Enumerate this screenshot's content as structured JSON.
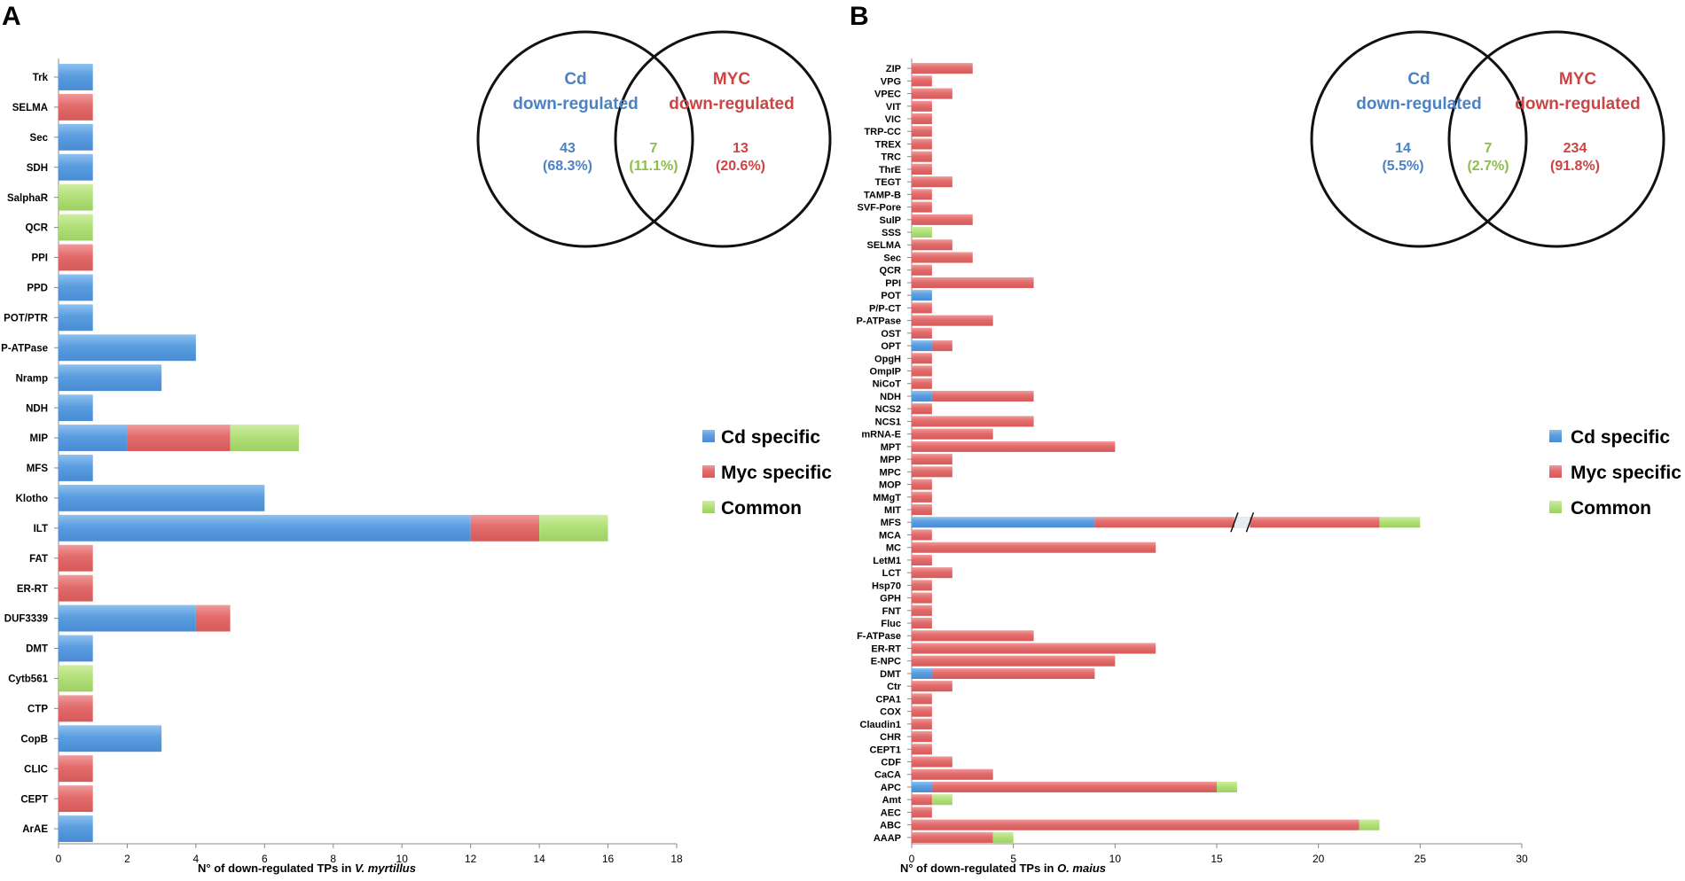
{
  "colors": {
    "cd": "#4f94d9",
    "myc": "#e06464",
    "common": "#a6d866",
    "cd_text": "#4a82c4",
    "myc_text": "#cc4444",
    "common_text": "#8bbf4a"
  },
  "legend": {
    "items": [
      {
        "label": "Cd specific",
        "key": "cd"
      },
      {
        "label": "Myc specific",
        "key": "myc"
      },
      {
        "label": "Common",
        "key": "common"
      }
    ]
  },
  "chart_data": [
    {
      "panel": "A",
      "type": "bar",
      "orientation": "horizontal",
      "stacked": true,
      "xlabel_prefix": "N° of down-regulated TPs in ",
      "xlabel_species": "V. myrtillus",
      "xlim": [
        0,
        18
      ],
      "xticks": [
        0,
        2,
        4,
        6,
        8,
        10,
        12,
        14,
        16,
        18
      ],
      "categories": [
        "Trk",
        "SELMA",
        "Sec",
        "SDH",
        "SalphaR",
        "QCR",
        "PPI",
        "PPD",
        "POT/PTR",
        "P-ATPase",
        "Nramp",
        "NDH",
        "MIP",
        "MFS",
        "Klotho",
        "ILT",
        "FAT",
        "ER-RT",
        "DUF3339",
        "DMT",
        "Cytb561",
        "CTP",
        "CopB",
        "CLIC",
        "CEPT",
        "ArAE"
      ],
      "series": [
        {
          "name": "Cd specific",
          "key": "cd",
          "values": [
            1,
            0,
            1,
            1,
            0,
            0,
            0,
            1,
            1,
            4,
            3,
            1,
            2,
            1,
            6,
            12,
            0,
            0,
            4,
            1,
            0,
            0,
            3,
            0,
            0,
            1
          ]
        },
        {
          "name": "Myc specific",
          "key": "myc",
          "values": [
            0,
            1,
            0,
            0,
            0,
            0,
            1,
            0,
            0,
            0,
            0,
            0,
            3,
            0,
            0,
            2,
            1,
            1,
            1,
            0,
            0,
            1,
            0,
            1,
            1,
            0
          ]
        },
        {
          "name": "Common",
          "key": "common",
          "values": [
            0,
            0,
            0,
            0,
            1,
            1,
            0,
            0,
            0,
            0,
            0,
            0,
            2,
            0,
            0,
            2,
            0,
            0,
            0,
            0,
            1,
            0,
            0,
            0,
            0,
            0
          ]
        }
      ],
      "venn": {
        "left_title": [
          "Cd",
          "down-regulated"
        ],
        "right_title": [
          "MYC",
          "down-regulated"
        ],
        "left_count": "43",
        "left_pct": "(68.3%)",
        "common_count": "7",
        "common_pct": "(11.1%)",
        "right_count": "13",
        "right_pct": "(20.6%)"
      }
    },
    {
      "panel": "B",
      "type": "bar",
      "orientation": "horizontal",
      "stacked": true,
      "xlabel_prefix": "N° of down-regulated TPs in ",
      "xlabel_species": "O. maius",
      "xlim": [
        0,
        30
      ],
      "xticks": [
        0,
        5,
        10,
        15,
        20,
        25,
        30
      ],
      "axis_break": {
        "category": "MFS",
        "positions": [
          16,
          16.5
        ]
      },
      "categories": [
        "ZIP",
        "VPG",
        "VPEC",
        "VIT",
        "VIC",
        "TRP-CC",
        "TREX",
        "TRC",
        "ThrE",
        "TEGT",
        "TAMP-B",
        "SVF-Pore",
        "SulP",
        "SSS",
        "SELMA",
        "Sec",
        "QCR",
        "PPI",
        "POT",
        "P/P-CT",
        "P-ATPase",
        "OST",
        "OPT",
        "OpgH",
        "OmpIP",
        "NiCoT",
        "NDH",
        "NCS2",
        "NCS1",
        "mRNA-E",
        "MPT",
        "MPP",
        "MPC",
        "MOP",
        "MMgT",
        "MIT",
        "MFS",
        "MCA",
        "MC",
        "LetM1",
        "LCT",
        "Hsp70",
        "GPH",
        "FNT",
        "Fluc",
        "F-ATPase",
        "ER-RT",
        "E-NPC",
        "DMT",
        "Ctr",
        "CPA1",
        "COX",
        "Claudin1",
        "CHR",
        "CEPT1",
        "CDF",
        "CaCA",
        "APC",
        "Amt",
        "AEC",
        "ABC",
        "AAAP"
      ],
      "series": [
        {
          "name": "Cd specific",
          "key": "cd",
          "values": [
            0,
            0,
            0,
            0,
            0,
            0,
            0,
            0,
            0,
            0,
            0,
            0,
            0,
            0,
            0,
            0,
            0,
            0,
            1,
            0,
            0,
            0,
            1,
            0,
            0,
            0,
            1,
            0,
            0,
            0,
            0,
            0,
            0,
            0,
            0,
            0,
            9,
            0,
            0,
            0,
            0,
            0,
            0,
            0,
            0,
            0,
            0,
            0,
            1,
            0,
            0,
            0,
            0,
            0,
            0,
            0,
            0,
            1,
            0,
            0,
            0,
            0
          ]
        },
        {
          "name": "Myc specific",
          "key": "myc",
          "values": [
            3,
            1,
            2,
            1,
            1,
            1,
            1,
            1,
            1,
            2,
            1,
            1,
            3,
            0,
            2,
            3,
            1,
            6,
            0,
            1,
            4,
            1,
            1,
            1,
            1,
            1,
            5,
            1,
            6,
            4,
            10,
            2,
            2,
            1,
            1,
            1,
            14,
            1,
            12,
            1,
            2,
            1,
            1,
            1,
            1,
            6,
            12,
            10,
            8,
            2,
            1,
            1,
            1,
            1,
            1,
            2,
            4,
            14,
            1,
            1,
            22,
            4
          ]
        },
        {
          "name": "Common",
          "key": "common",
          "values": [
            0,
            0,
            0,
            0,
            0,
            0,
            0,
            0,
            0,
            0,
            0,
            0,
            0,
            1,
            0,
            0,
            0,
            0,
            0,
            0,
            0,
            0,
            0,
            0,
            0,
            0,
            0,
            0,
            0,
            0,
            0,
            0,
            0,
            0,
            0,
            0,
            2,
            0,
            0,
            0,
            0,
            0,
            0,
            0,
            0,
            0,
            0,
            0,
            0,
            0,
            0,
            0,
            0,
            0,
            0,
            0,
            0,
            1,
            1,
            0,
            1,
            1
          ]
        }
      ],
      "venn": {
        "left_title": [
          "Cd",
          "down-regulated"
        ],
        "right_title": [
          "MYC",
          "down-regulated"
        ],
        "left_count": "14",
        "left_pct": "(5.5%)",
        "common_count": "7",
        "common_pct": "(2.7%)",
        "right_count": "234",
        "right_pct": "(91.8%)"
      }
    }
  ]
}
